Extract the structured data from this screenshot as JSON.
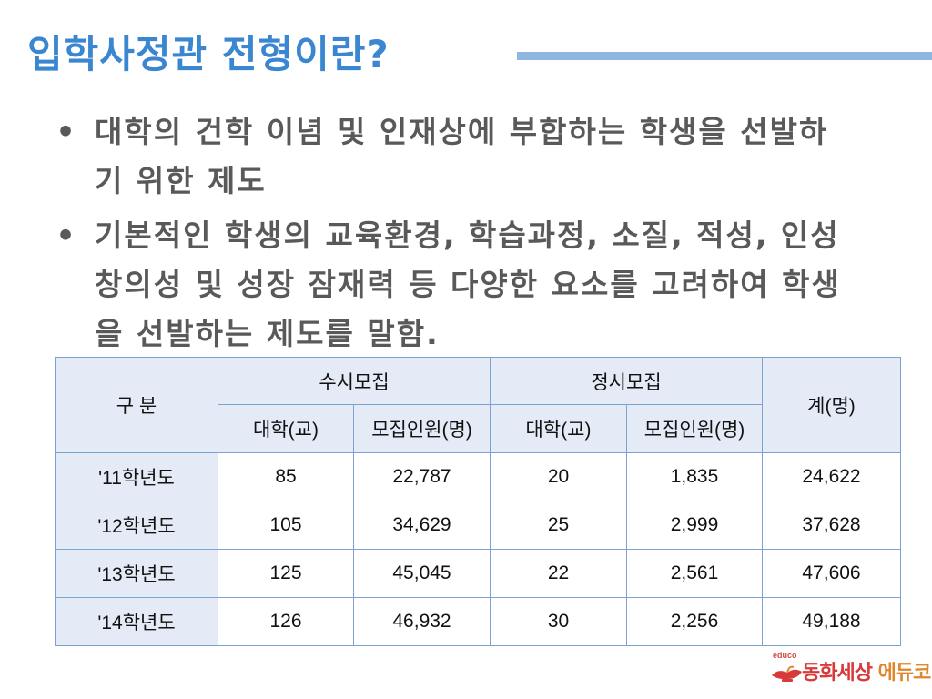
{
  "title": "입학사정관 전형이란?",
  "bullets": [
    "대학의 건학 이념 및 인재상에 부합하는 학생을 선발하기 위한 제도",
    "기본적인 학생의 교육환경, 학습과정, 소질, 적성, 인성 창의성 및 성장 잠재력 등 다양한 요소를 고려하여 학생을 선발하는 제도를 말함."
  ],
  "table": {
    "header": {
      "division": "구 분",
      "susi": "수시모집",
      "jeongsi": "정시모집",
      "total": "계(명)",
      "univ": "대학(교)",
      "people": "모집인원(명)"
    },
    "rows": [
      {
        "year": "'11학년도",
        "susi_univ": "85",
        "susi_people": "22,787",
        "jeongsi_univ": "20",
        "jeongsi_people": "1,835",
        "total": "24,622"
      },
      {
        "year": "'12학년도",
        "susi_univ": "105",
        "susi_people": "34,629",
        "jeongsi_univ": "25",
        "jeongsi_people": "2,999",
        "total": "37,628"
      },
      {
        "year": "'13학년도",
        "susi_univ": "125",
        "susi_people": "45,045",
        "jeongsi_univ": "22",
        "jeongsi_people": "2,561",
        "total": "47,606"
      },
      {
        "year": "'14학년도",
        "susi_univ": "126",
        "susi_people": "46,932",
        "jeongsi_univ": "30",
        "jeongsi_people": "2,256",
        "total": "49,188"
      }
    ]
  },
  "logo": {
    "small": "educo",
    "main_a": "동화세상",
    "main_b": " 에듀코",
    "icon": "magic-lamp-icon"
  },
  "colors": {
    "title": "#3b86d1",
    "accent_bar": "#8fb6df",
    "table_border": "#7fa3d1",
    "table_header_bg": "#e4eaf6"
  }
}
